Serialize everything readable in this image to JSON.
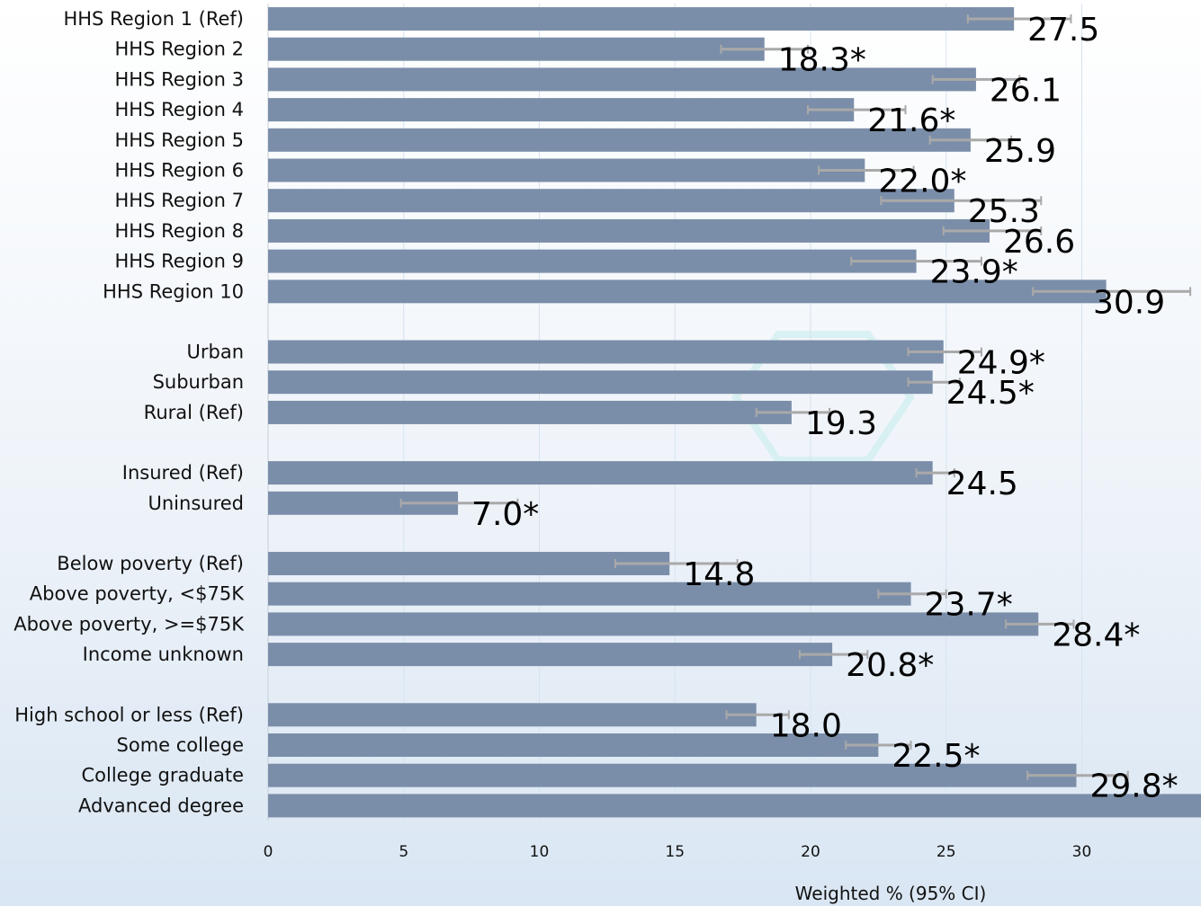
{
  "chart_data": {
    "type": "bar",
    "orientation": "horizontal",
    "xlabel": "Weighted % (95% CI)",
    "xlim": [
      0,
      34.5
    ],
    "xticks": [
      0,
      5,
      10,
      15,
      20,
      25,
      30
    ],
    "grid": true,
    "bar_color": "#7b8ea9",
    "errorbar_color": "#a9a9a9",
    "categories": [
      {
        "label": "HHS Region 1 (Ref)",
        "value": 27.5,
        "label_text": "27.5",
        "ci": [
          25.8,
          29.6
        ]
      },
      {
        "label": "HHS Region 2",
        "value": 18.3,
        "label_text": "18.3*",
        "ci": [
          16.7,
          19.9
        ]
      },
      {
        "label": "HHS Region 3",
        "value": 26.1,
        "label_text": "26.1",
        "ci": [
          24.5,
          27.7
        ]
      },
      {
        "label": "HHS Region 4",
        "value": 21.6,
        "label_text": "21.6*",
        "ci": [
          19.9,
          23.5
        ]
      },
      {
        "label": "HHS Region 5",
        "value": 25.9,
        "label_text": "25.9",
        "ci": [
          24.4,
          27.4
        ]
      },
      {
        "label": "HHS Region 6",
        "value": 22.0,
        "label_text": "22.0*",
        "ci": [
          20.3,
          23.8
        ]
      },
      {
        "label": "HHS Region 7",
        "value": 25.3,
        "label_text": "25.3",
        "ci": [
          22.6,
          28.5
        ]
      },
      {
        "label": "HHS Region 8",
        "value": 26.6,
        "label_text": "26.6",
        "ci": [
          24.9,
          28.5
        ]
      },
      {
        "label": "HHS Region 9",
        "value": 23.9,
        "label_text": "23.9*",
        "ci": [
          21.5,
          26.3
        ]
      },
      {
        "label": "HHS Region 10",
        "value": 30.9,
        "label_text": "30.9",
        "ci": [
          28.2,
          34.0
        ]
      },
      {
        "gap": true
      },
      {
        "label": "Urban",
        "value": 24.9,
        "label_text": "24.9*",
        "ci": [
          23.6,
          26.3
        ]
      },
      {
        "label": "Suburban",
        "value": 24.5,
        "label_text": "24.5*",
        "ci": [
          23.6,
          25.5
        ]
      },
      {
        "label": "Rural (Ref)",
        "value": 19.3,
        "label_text": "19.3",
        "ci": [
          18.0,
          20.7
        ]
      },
      {
        "gap": true
      },
      {
        "label": "Insured (Ref)",
        "value": 24.5,
        "label_text": "24.5",
        "ci": [
          23.9,
          25.3
        ]
      },
      {
        "label": "Uninsured",
        "value": 7.0,
        "label_text": "7.0*",
        "ci": [
          4.9,
          9.2
        ]
      },
      {
        "gap": true
      },
      {
        "label": "Below poverty (Ref)",
        "value": 14.8,
        "label_text": "14.8",
        "ci": [
          12.8,
          17.3
        ]
      },
      {
        "label": "Above poverty, <$75K",
        "value": 23.7,
        "label_text": "23.7*",
        "ci": [
          22.5,
          25.0
        ]
      },
      {
        "label": "Above poverty, >=$75K",
        "value": 28.4,
        "label_text": "28.4*",
        "ci": [
          27.2,
          29.7
        ]
      },
      {
        "label": "Income unknown",
        "value": 20.8,
        "label_text": "20.8*",
        "ci": [
          19.6,
          22.1
        ]
      },
      {
        "gap": true
      },
      {
        "label": "High school or less (Ref)",
        "value": 18.0,
        "label_text": "18.0",
        "ci": [
          16.9,
          19.2
        ]
      },
      {
        "label": "Some college",
        "value": 22.5,
        "label_text": "22.5*",
        "ci": [
          21.3,
          23.7
        ]
      },
      {
        "label": "College graduate",
        "value": 29.8,
        "label_text": "29.8*",
        "ci": [
          28.0,
          31.7
        ]
      },
      {
        "label": "Advanced degree",
        "value": 34.5,
        "label_text": "",
        "ci": null
      }
    ]
  }
}
